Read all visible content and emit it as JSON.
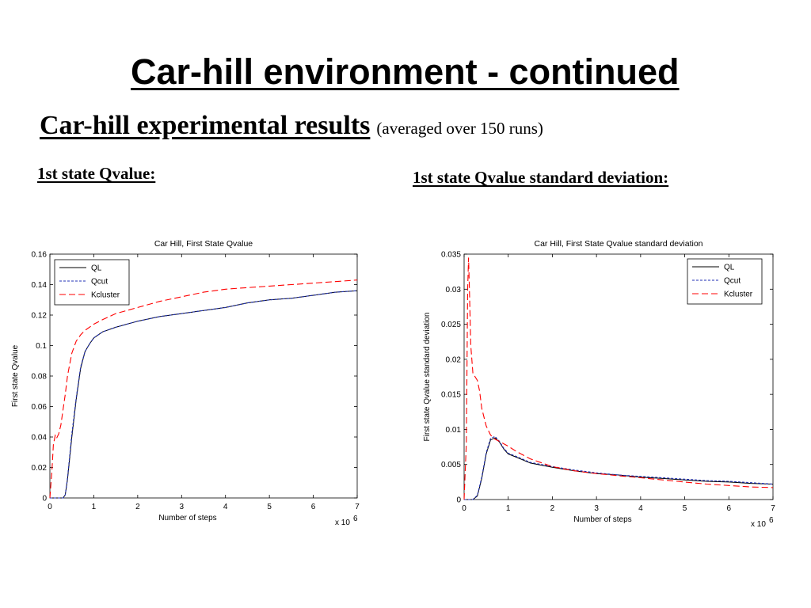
{
  "slide": {
    "title": "Car-hill environment - continued",
    "subtitle": "Car-hill experimental results",
    "subtitle_note": "(averaged over 150 runs)",
    "left_heading": "1st state Qvalue:",
    "right_heading": "1st state Qvalue standard deviation:"
  },
  "colors": {
    "QL": "#000000",
    "Qcut": "#1f2fb4",
    "Kcluster": "#ff0000"
  },
  "chart_data": [
    {
      "type": "line",
      "title": "Car Hill, First State Qvalue",
      "xlabel": "Number of steps",
      "ylabel": "First state Qvalue",
      "x_exponent_label": "x 10",
      "x_exponent": "6",
      "xlim": [
        0,
        7
      ],
      "ylim": [
        0,
        0.16
      ],
      "xticks": [
        "0",
        "1",
        "2",
        "3",
        "4",
        "5",
        "6",
        "7"
      ],
      "yticks": [
        "0",
        "0.02",
        "0.04",
        "0.06",
        "0.08",
        "0.1",
        "0.12",
        "0.14",
        "0.16"
      ],
      "legend_position": "top-left",
      "grid": false,
      "series": [
        {
          "name": "QL",
          "style": "solid",
          "x": [
            0,
            0.2,
            0.3,
            0.35,
            0.4,
            0.5,
            0.6,
            0.7,
            0.8,
            0.9,
            1.0,
            1.2,
            1.5,
            2.0,
            2.5,
            3.0,
            3.5,
            4.0,
            4.5,
            5.0,
            5.5,
            6.0,
            6.5,
            7.0
          ],
          "y": [
            0,
            0,
            0,
            0.002,
            0.012,
            0.04,
            0.065,
            0.085,
            0.096,
            0.101,
            0.105,
            0.109,
            0.112,
            0.116,
            0.119,
            0.121,
            0.123,
            0.125,
            0.128,
            0.13,
            0.131,
            0.133,
            0.135,
            0.136
          ]
        },
        {
          "name": "Qcut",
          "style": "dashed",
          "x": [
            0,
            0.2,
            0.3,
            0.35,
            0.4,
            0.5,
            0.6,
            0.7,
            0.8,
            0.9,
            1.0,
            1.2,
            1.5,
            2.0,
            2.5,
            3.0,
            3.5,
            4.0,
            4.5,
            5.0,
            5.5,
            6.0,
            6.5,
            7.0
          ],
          "y": [
            0,
            0,
            0,
            0.002,
            0.013,
            0.042,
            0.066,
            0.086,
            0.096,
            0.101,
            0.105,
            0.109,
            0.112,
            0.116,
            0.119,
            0.121,
            0.123,
            0.125,
            0.128,
            0.13,
            0.131,
            0.133,
            0.135,
            0.136
          ]
        },
        {
          "name": "Kcluster",
          "style": "long-dash",
          "x": [
            0,
            0.05,
            0.08,
            0.12,
            0.15,
            0.2,
            0.25,
            0.3,
            0.35,
            0.4,
            0.5,
            0.6,
            0.7,
            0.8,
            1.0,
            1.2,
            1.5,
            2.0,
            2.5,
            3.0,
            3.5,
            4.0,
            4.5,
            5.0,
            5.5,
            6.0,
            6.5,
            7.0
          ],
          "y": [
            0,
            0.02,
            0.035,
            0.041,
            0.039,
            0.042,
            0.048,
            0.058,
            0.068,
            0.08,
            0.095,
            0.103,
            0.107,
            0.11,
            0.114,
            0.117,
            0.121,
            0.125,
            0.129,
            0.132,
            0.135,
            0.137,
            0.138,
            0.139,
            0.14,
            0.141,
            0.142,
            0.143
          ]
        }
      ]
    },
    {
      "type": "line",
      "title": "Car Hill, First State Qvalue standard deviation",
      "xlabel": "Number of steps",
      "ylabel": "First state Qvalue standard deviation",
      "x_exponent_label": "x 10",
      "x_exponent": "6",
      "xlim": [
        0,
        7
      ],
      "ylim": [
        0,
        0.035
      ],
      "xticks": [
        "0",
        "1",
        "2",
        "3",
        "4",
        "5",
        "6",
        "7"
      ],
      "yticks": [
        "0",
        "0.005",
        "0.01",
        "0.015",
        "0.02",
        "0.025",
        "0.03",
        "0.035"
      ],
      "legend_position": "top-right",
      "grid": false,
      "series": [
        {
          "name": "QL",
          "style": "solid",
          "x": [
            0,
            0.2,
            0.3,
            0.4,
            0.5,
            0.6,
            0.7,
            0.8,
            0.9,
            1.0,
            1.2,
            1.5,
            2.0,
            2.5,
            3.0,
            3.5,
            4.0,
            4.5,
            5.0,
            5.5,
            6.0,
            6.5,
            7.0
          ],
          "y": [
            0,
            0,
            0.0005,
            0.003,
            0.0065,
            0.0085,
            0.0088,
            0.0082,
            0.0072,
            0.0065,
            0.006,
            0.0052,
            0.0046,
            0.0041,
            0.0037,
            0.0035,
            0.0032,
            0.003,
            0.0028,
            0.0026,
            0.0025,
            0.0023,
            0.0022
          ]
        },
        {
          "name": "Qcut",
          "style": "dashed",
          "x": [
            0,
            0.2,
            0.3,
            0.4,
            0.5,
            0.6,
            0.7,
            0.8,
            0.9,
            1.0,
            1.2,
            1.5,
            2.0,
            2.5,
            3.0,
            3.5,
            4.0,
            4.5,
            5.0,
            5.5,
            6.0,
            6.5,
            7.0
          ],
          "y": [
            0,
            0,
            0.0006,
            0.0032,
            0.0067,
            0.0087,
            0.009,
            0.0083,
            0.0073,
            0.0066,
            0.0061,
            0.0053,
            0.0047,
            0.0042,
            0.0038,
            0.0035,
            0.0033,
            0.0031,
            0.0029,
            0.0027,
            0.0026,
            0.0024,
            0.0022
          ]
        },
        {
          "name": "Kcluster",
          "style": "long-dash",
          "x": [
            0,
            0.05,
            0.08,
            0.1,
            0.12,
            0.15,
            0.2,
            0.3,
            0.35,
            0.4,
            0.5,
            0.6,
            0.7,
            0.8,
            1.0,
            1.2,
            1.5,
            2.0,
            2.5,
            3.0,
            3.5,
            4.0,
            4.5,
            5.0,
            5.5,
            6.0,
            6.5,
            7.0
          ],
          "y": [
            0,
            0.008,
            0.03,
            0.0345,
            0.03,
            0.022,
            0.018,
            0.017,
            0.0155,
            0.013,
            0.0105,
            0.0092,
            0.0086,
            0.0083,
            0.0076,
            0.0068,
            0.0058,
            0.0047,
            0.0041,
            0.0037,
            0.0034,
            0.0031,
            0.0028,
            0.0025,
            0.0022,
            0.002,
            0.0018,
            0.0017
          ]
        }
      ]
    }
  ]
}
